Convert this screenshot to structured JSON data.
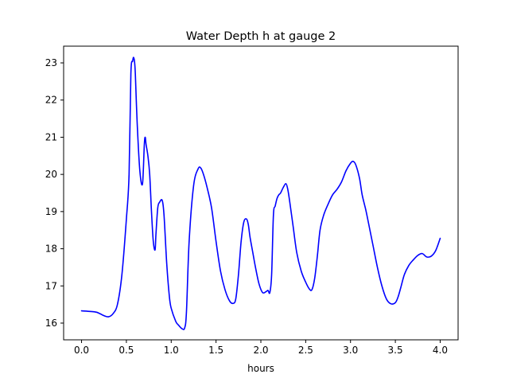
{
  "chart_data": {
    "type": "line",
    "title": "Water Depth h at gauge 2",
    "xlabel": "hours",
    "ylabel": "",
    "xlim": [
      -0.2,
      4.2
    ],
    "ylim": [
      15.55,
      23.45
    ],
    "xticks": [
      0.0,
      0.5,
      1.0,
      1.5,
      2.0,
      2.5,
      3.0,
      3.5,
      4.0
    ],
    "xtick_labels": [
      "0.0",
      "0.5",
      "1.0",
      "1.5",
      "2.0",
      "2.5",
      "3.0",
      "3.5",
      "4.0"
    ],
    "yticks": [
      16,
      17,
      18,
      19,
      20,
      21,
      22,
      23
    ],
    "ytick_labels": [
      "16",
      "17",
      "18",
      "19",
      "20",
      "21",
      "22",
      "23"
    ],
    "grid": false,
    "line_color": "#0000ff",
    "series": [
      {
        "x": [
          0.0,
          0.15,
          0.2,
          0.25,
          0.3,
          0.35,
          0.4,
          0.45,
          0.5,
          0.53,
          0.55,
          0.57,
          0.58,
          0.59,
          0.6,
          0.62,
          0.65,
          0.68,
          0.7,
          0.71,
          0.72,
          0.74,
          0.76,
          0.78,
          0.8,
          0.82,
          0.83,
          0.85,
          0.87,
          0.9,
          0.92,
          0.95,
          0.98,
          1.0,
          1.05,
          1.08,
          1.12,
          1.15,
          1.17,
          1.2,
          1.25,
          1.3,
          1.33,
          1.36,
          1.4,
          1.45,
          1.5,
          1.55,
          1.6,
          1.65,
          1.69,
          1.72,
          1.75,
          1.78,
          1.81,
          1.84,
          1.86,
          1.88,
          1.91,
          1.94,
          1.98,
          2.02,
          2.06,
          2.08,
          2.1,
          2.12,
          2.14,
          2.16,
          2.18,
          2.2,
          2.22,
          2.25,
          2.28,
          2.3,
          2.32,
          2.36,
          2.4,
          2.45,
          2.5,
          2.54,
          2.57,
          2.6,
          2.63,
          2.66,
          2.7,
          2.75,
          2.8,
          2.85,
          2.9,
          2.95,
          3.0,
          3.03,
          3.06,
          3.1,
          3.13,
          3.17,
          3.2,
          3.25,
          3.3,
          3.35,
          3.4,
          3.45,
          3.5,
          3.53,
          3.56,
          3.6,
          3.65,
          3.7,
          3.75,
          3.8,
          3.85,
          3.9,
          3.95,
          4.0
        ],
        "values": [
          16.33,
          16.3,
          16.26,
          16.2,
          16.17,
          16.25,
          16.5,
          17.3,
          18.8,
          20.0,
          22.7,
          23.05,
          23.15,
          23.05,
          22.7,
          21.4,
          20.1,
          19.75,
          20.8,
          21.0,
          20.8,
          20.5,
          20.0,
          19.0,
          18.2,
          17.97,
          18.4,
          19.1,
          19.25,
          19.3,
          18.9,
          17.6,
          16.7,
          16.4,
          16.05,
          15.95,
          15.85,
          15.87,
          16.3,
          18.2,
          19.7,
          20.15,
          20.17,
          20.0,
          19.65,
          19.1,
          18.2,
          17.4,
          16.9,
          16.6,
          16.53,
          16.65,
          17.3,
          18.2,
          18.72,
          18.8,
          18.65,
          18.3,
          17.9,
          17.5,
          17.05,
          16.82,
          16.85,
          16.88,
          16.82,
          17.3,
          18.9,
          19.15,
          19.35,
          19.45,
          19.5,
          19.65,
          19.75,
          19.6,
          19.3,
          18.6,
          17.9,
          17.4,
          17.1,
          16.92,
          16.9,
          17.2,
          17.8,
          18.5,
          18.9,
          19.2,
          19.45,
          19.6,
          19.8,
          20.1,
          20.3,
          20.35,
          20.25,
          19.9,
          19.45,
          19.05,
          18.7,
          18.1,
          17.5,
          17.0,
          16.65,
          16.52,
          16.55,
          16.7,
          16.95,
          17.3,
          17.55,
          17.7,
          17.82,
          17.87,
          17.78,
          17.8,
          17.95,
          18.28
        ]
      }
    ]
  }
}
